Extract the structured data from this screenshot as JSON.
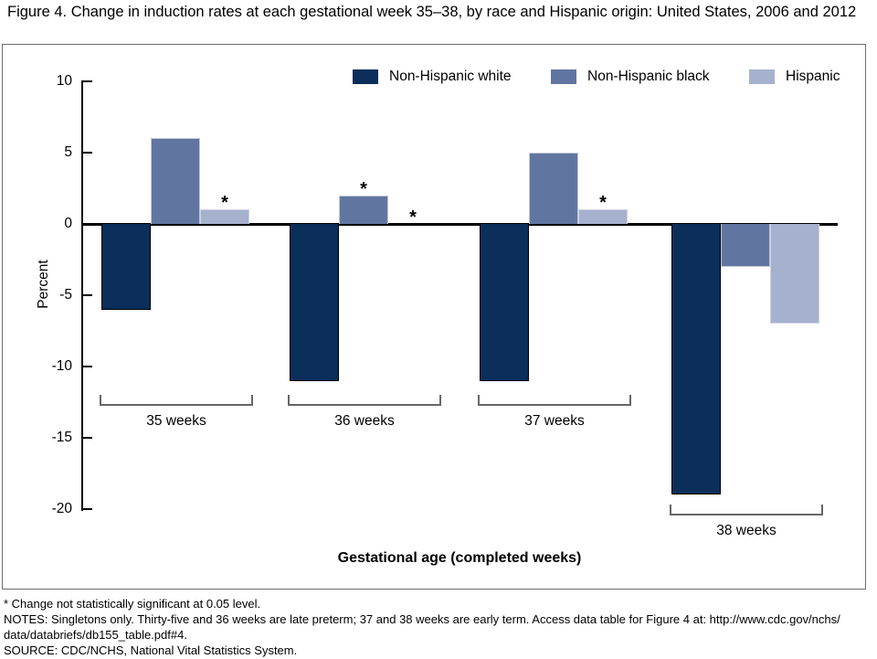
{
  "figure": {
    "title": "Figure 4. Change in induction rates at each gestational week 35–38, by race and Hispanic origin: United States, 2006 and 2012"
  },
  "chart_data": {
    "type": "bar",
    "title": "Change in induction rates at each gestational week 35–38, by race and Hispanic origin: United States, 2006 and 2012",
    "categories": [
      "35 weeks",
      "36 weeks",
      "37 weeks",
      "38 weeks"
    ],
    "series": [
      {
        "name": "Non-Hispanic white",
        "color": "#0b2e5a",
        "border_color": "#000000",
        "values": [
          -6,
          -11,
          -11,
          -19
        ],
        "not_significant": [
          false,
          false,
          false,
          false
        ]
      },
      {
        "name": "Non-Hispanic black",
        "color": "#6076a1",
        "border_color": "#c3c8d8",
        "values": [
          6,
          2,
          5,
          -3
        ],
        "not_significant": [
          false,
          true,
          false,
          false
        ]
      },
      {
        "name": "Hispanic",
        "color": "#a6b1ce",
        "border_color": "#ced3e2",
        "values": [
          1,
          0,
          1,
          -7
        ],
        "not_significant": [
          true,
          true,
          true,
          false
        ]
      }
    ],
    "xlabel": "Gestational age (completed weeks)",
    "ylabel": "Percent",
    "ylim": [
      -20,
      10
    ],
    "yticks": [
      10,
      5,
      0,
      -5,
      -10,
      -15,
      -20
    ],
    "grid": false,
    "legend_position": "top-right-inside",
    "significance_marker": "*"
  },
  "footnotes": {
    "significance": "* Change not statistically significant at 0.05 level.",
    "notes_line1": "NOTES: Singletons only. Thirty-five and 36 weeks are late preterm; 37 and 38 weeks are early term. Access data table for Figure 4 at: http://www.cdc.gov/nchs/",
    "notes_line2": "data/databriefs/db155_table.pdf#4.",
    "source": "SOURCE: CDC/NCHS, National Vital Statistics System."
  }
}
